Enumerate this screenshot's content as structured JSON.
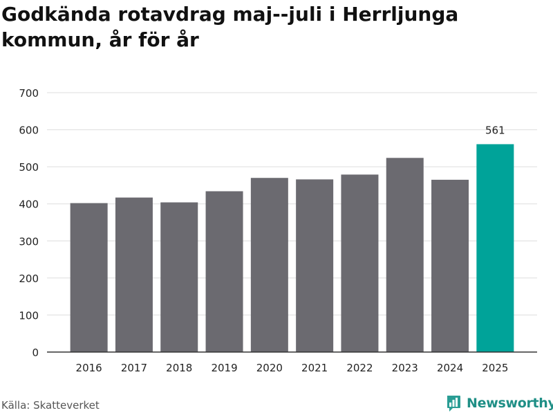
{
  "title": "Godkända rotavdrag maj--juli i Herrljunga kommun, år för år",
  "source": "Källa: Skatteverket",
  "brand": "Newsworthy",
  "colors": {
    "bar": "#6b6a70",
    "highlight": "#00a399",
    "grid": "#dddddd",
    "axis": "#333333",
    "text": "#222222",
    "brand": "#1f8f86"
  },
  "icons": {
    "brand_logo": "newsworthy-logo-icon"
  },
  "chart_data": {
    "type": "bar",
    "categories": [
      "2016",
      "2017",
      "2018",
      "2019",
      "2020",
      "2021",
      "2022",
      "2023",
      "2024",
      "2025"
    ],
    "values": [
      402,
      417,
      404,
      434,
      470,
      466,
      479,
      524,
      465,
      561
    ],
    "highlight_index": 9,
    "data_labels": [
      {
        "index": 9,
        "text": "561"
      }
    ],
    "ylim": [
      0,
      700
    ],
    "yticks": [
      0,
      100,
      200,
      300,
      400,
      500,
      600,
      700
    ],
    "xlabel": "",
    "ylabel": "",
    "grid": true
  }
}
